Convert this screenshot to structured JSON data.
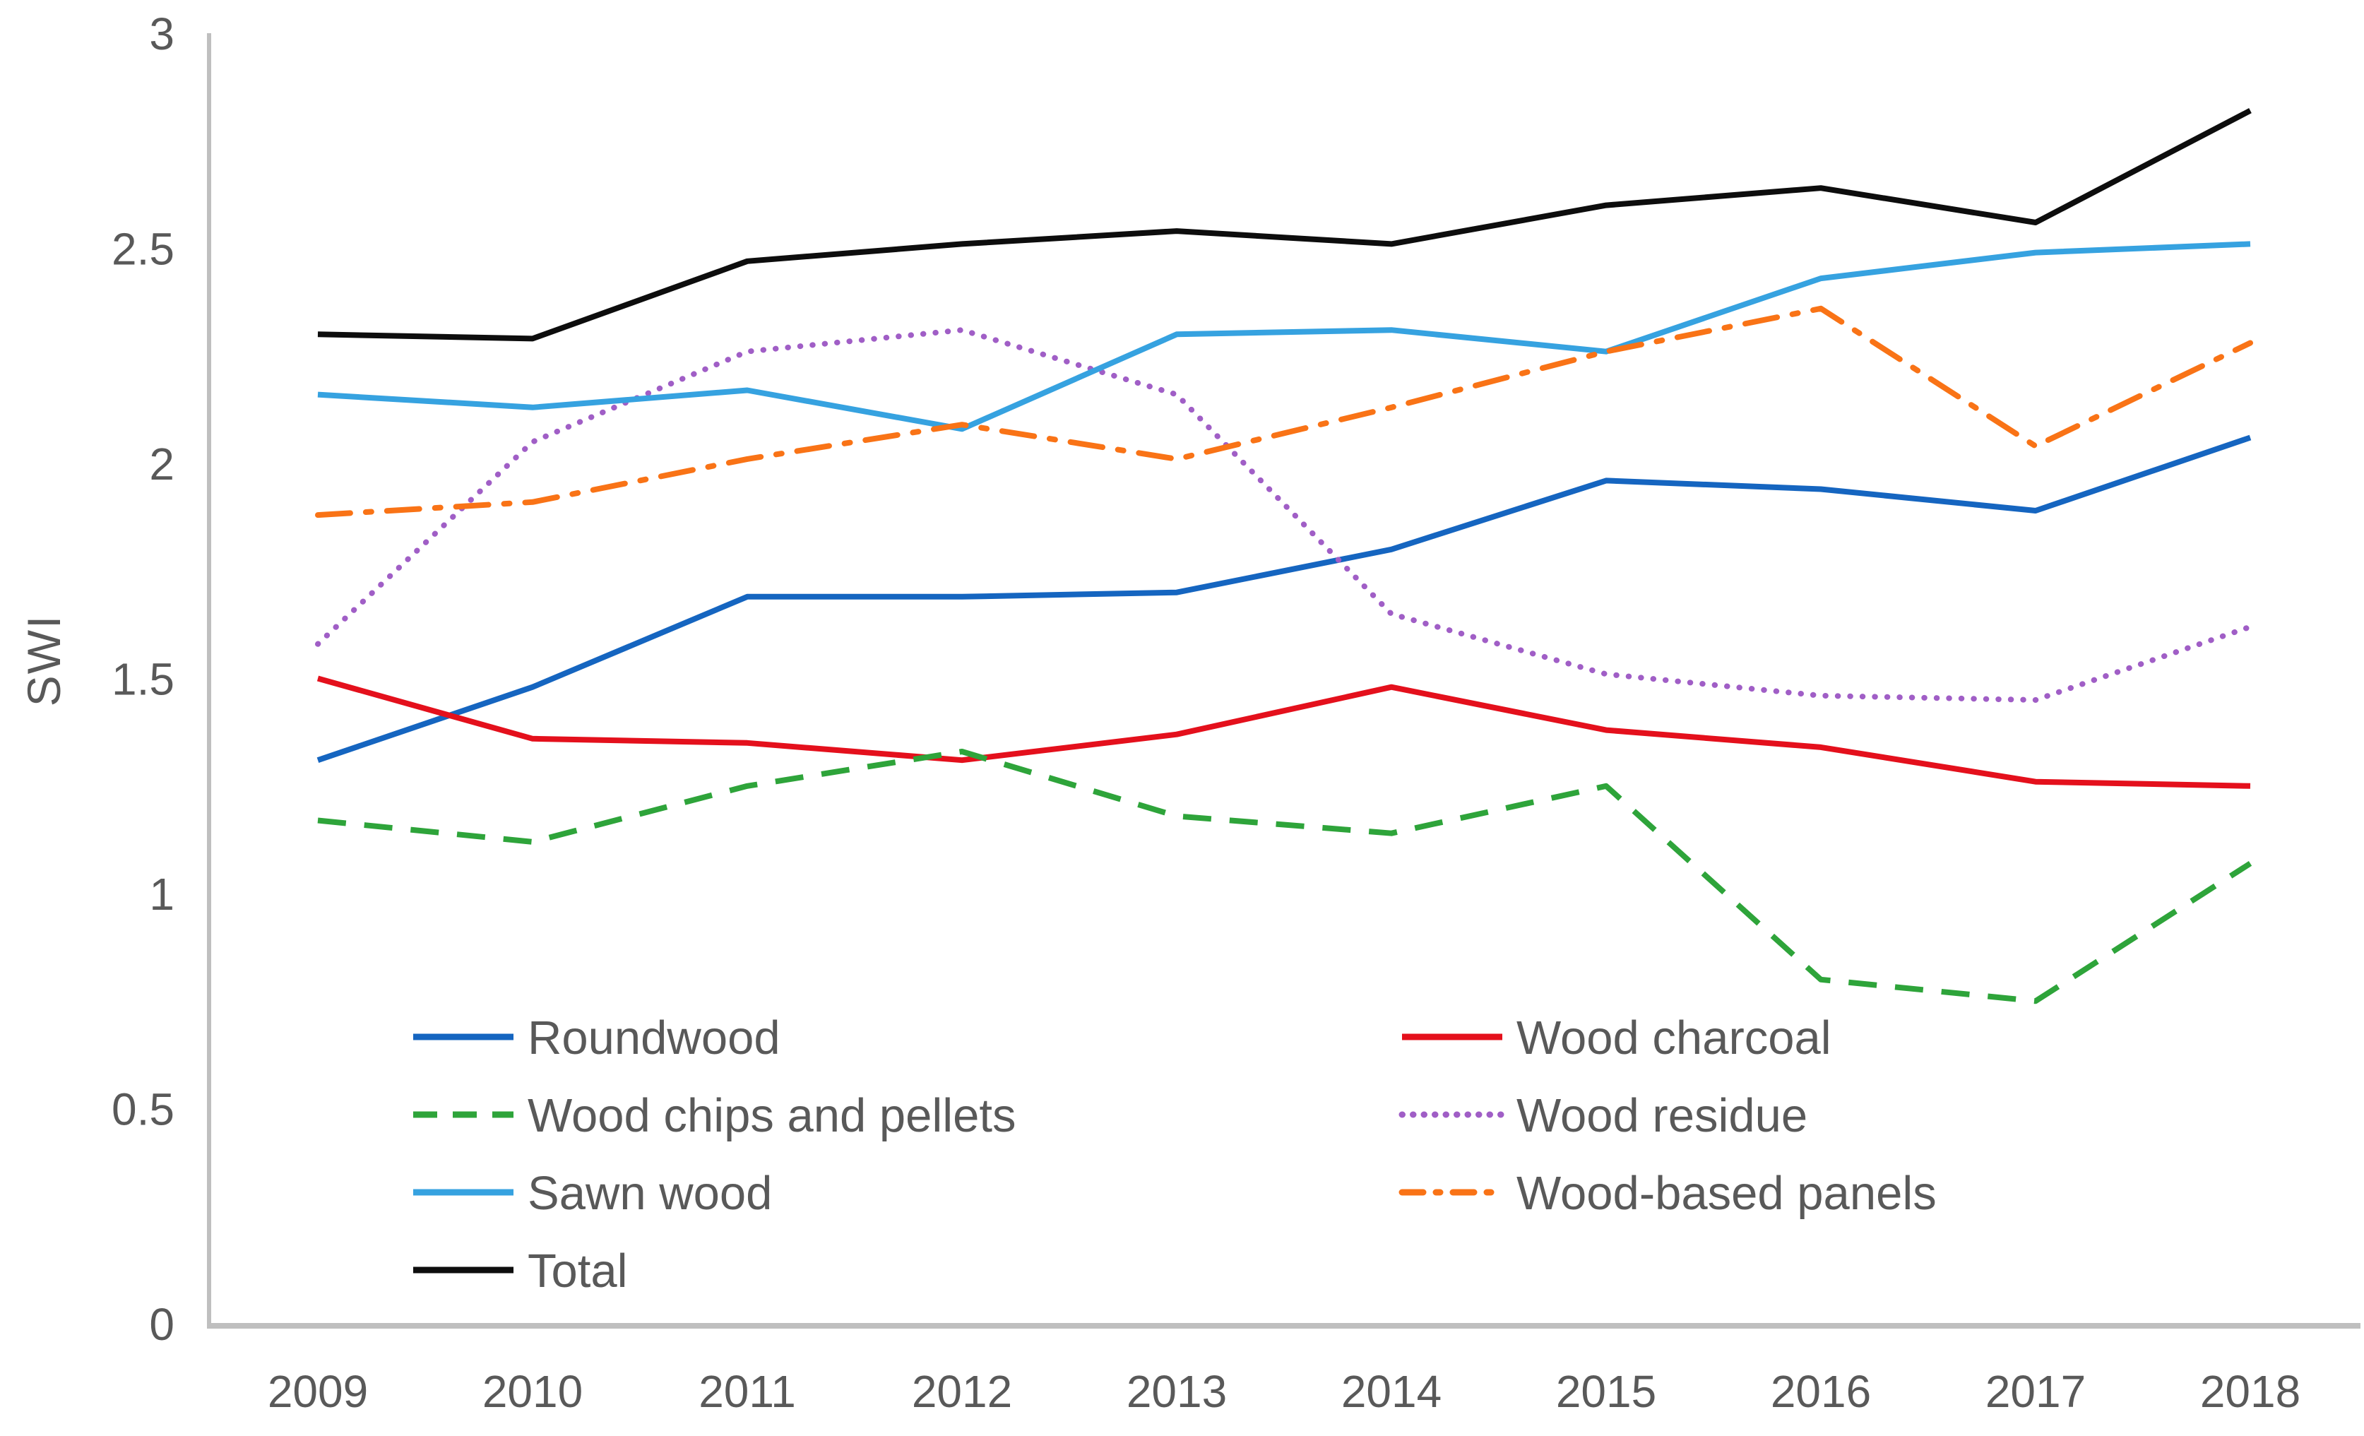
{
  "chart_data": {
    "type": "line",
    "title": "",
    "xlabel": "",
    "ylabel": "SWI",
    "ylim": [
      0,
      3
    ],
    "ytick_labels": [
      "0",
      "0.5",
      "1",
      "1.5",
      "2",
      "2.5",
      "3"
    ],
    "yticks": [
      0,
      0.5,
      1,
      1.5,
      2,
      2.5,
      3
    ],
    "categories": [
      "2009",
      "2010",
      "2011",
      "2012",
      "2013",
      "2014",
      "2015",
      "2016",
      "2017",
      "2018"
    ],
    "grid": false,
    "legend_position": "inside-bottom-left-two-columns",
    "axis_color": "#BFBFBF",
    "text_color": "#595959",
    "series": [
      {
        "name": "Roundwood",
        "color": "#1565C0",
        "style": "solid",
        "values": [
          1.31,
          1.48,
          1.69,
          1.69,
          1.7,
          1.8,
          1.96,
          1.94,
          1.89,
          2.06
        ]
      },
      {
        "name": "Wood charcoal",
        "color": "#E4101C",
        "style": "solid",
        "values": [
          1.5,
          1.36,
          1.35,
          1.31,
          1.37,
          1.48,
          1.38,
          1.34,
          1.26,
          1.25
        ]
      },
      {
        "name": "Wood chips and pellets",
        "color": "#2EA43A",
        "style": "dashed",
        "values": [
          1.17,
          1.12,
          1.25,
          1.33,
          1.18,
          1.14,
          1.25,
          0.8,
          0.75,
          1.07
        ]
      },
      {
        "name": "Wood residue",
        "color": "#A05EC6",
        "style": "dotted",
        "values": [
          1.58,
          2.05,
          2.26,
          2.31,
          2.16,
          1.65,
          1.51,
          1.46,
          1.45,
          1.62
        ]
      },
      {
        "name": "Sawn wood",
        "color": "#36A2E0",
        "style": "solid",
        "values": [
          2.16,
          2.13,
          2.17,
          2.08,
          2.3,
          2.31,
          2.26,
          2.43,
          2.49,
          2.51
        ]
      },
      {
        "name": "Wood-based panels",
        "color": "#F97316",
        "style": "dashdot",
        "values": [
          1.88,
          1.91,
          2.01,
          2.09,
          2.01,
          2.13,
          2.26,
          2.36,
          2.04,
          2.28
        ]
      },
      {
        "name": "Total",
        "color": "#0D0D0D",
        "style": "solid",
        "values": [
          2.3,
          2.29,
          2.47,
          2.51,
          2.54,
          2.51,
          2.6,
          2.64,
          2.56,
          2.82
        ]
      }
    ],
    "legend_columns": {
      "left": [
        "Roundwood",
        "Wood chips and pellets",
        "Sawn wood",
        "Total"
      ],
      "right": [
        "Wood charcoal",
        "Wood residue",
        "Wood-based panels"
      ]
    }
  }
}
